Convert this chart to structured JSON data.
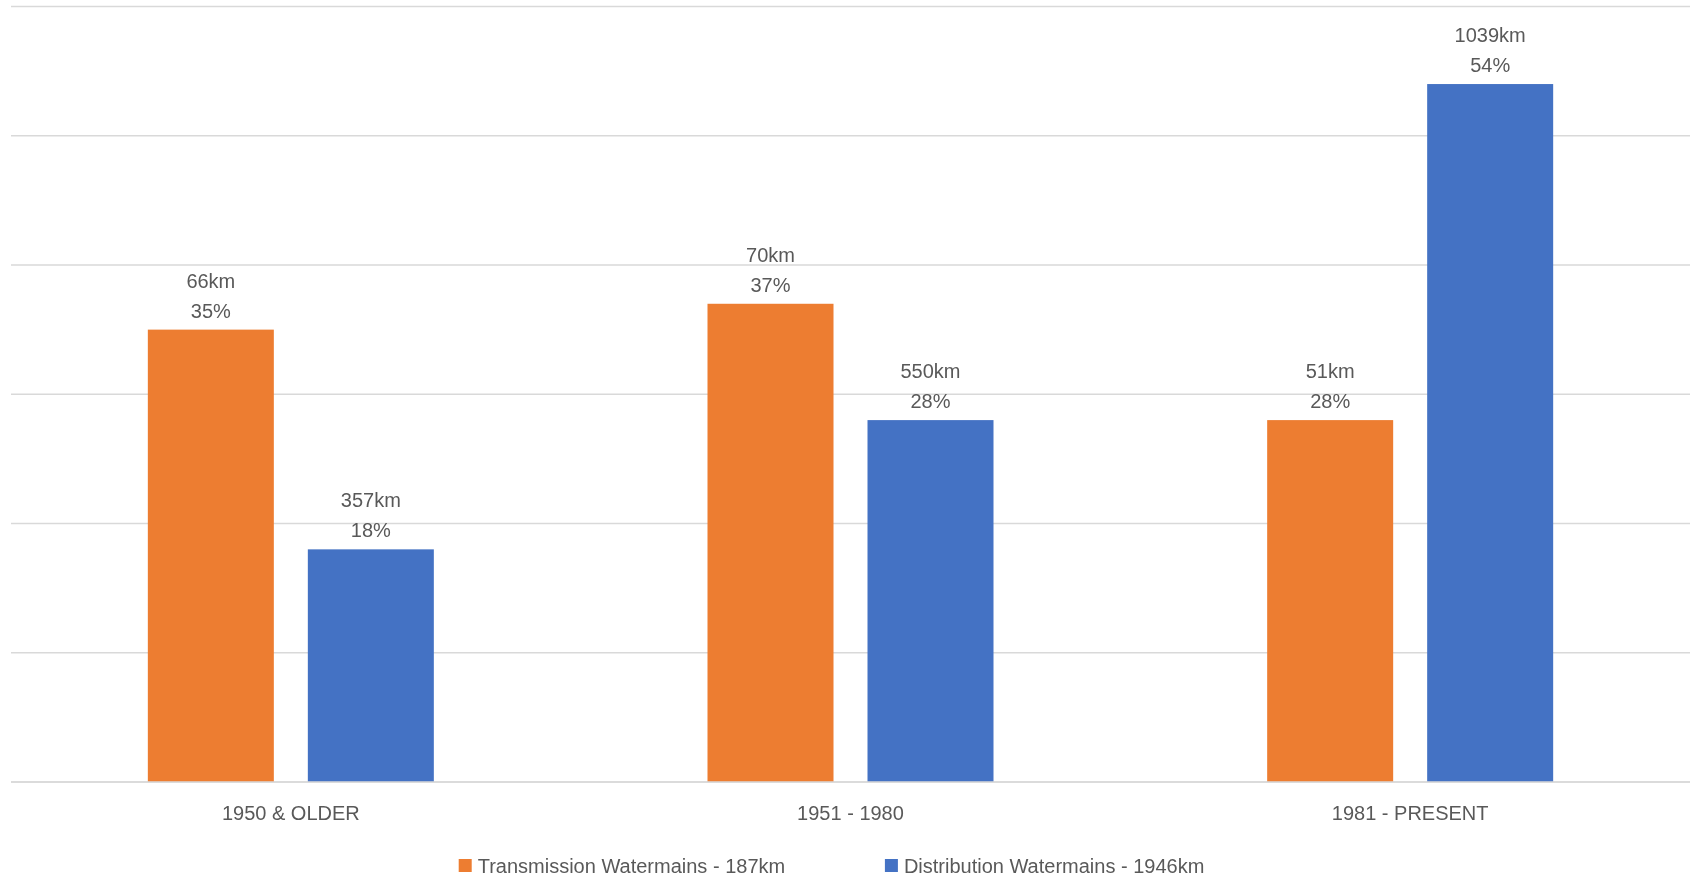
{
  "chart_data": {
    "type": "bar",
    "categories": [
      "1950 & OLDER",
      "1951 - 1980",
      "1981 - PRESENT"
    ],
    "series": [
      {
        "name": "Transmission Watermains - 187km",
        "color": "#ed7d31",
        "values": [
          35,
          37,
          28
        ],
        "value_labels": [
          "66km\n35%",
          "70km\n37%",
          "51km\n28%"
        ]
      },
      {
        "name": "Distribution Watermains - 1946km",
        "color": "#4472c4",
        "values": [
          18,
          28,
          54
        ],
        "value_labels": [
          "357km\n18%",
          "550km\n28%",
          "1039km\n54%"
        ]
      }
    ],
    "relative": false,
    "ylim": [
      0,
      60
    ],
    "yticks": [
      {
        "value": 0,
        "label": null
      },
      {
        "value": 10,
        "label": null
      },
      {
        "value": 20,
        "label": null
      },
      {
        "value": 30,
        "label": null
      },
      {
        "value": 40,
        "label": null
      },
      {
        "value": 50,
        "label": null
      },
      {
        "value": 60,
        "label": null
      }
    ],
    "tick_labels": "x",
    "grid": "y",
    "legend": "bottom"
  }
}
